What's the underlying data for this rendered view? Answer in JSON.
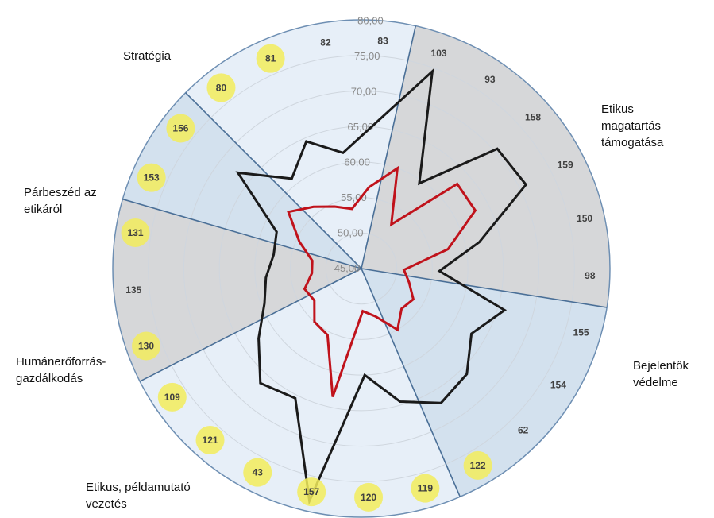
{
  "chart_data": {
    "type": "radar",
    "rlim": [
      45,
      80
    ],
    "ring_values": [
      45,
      50,
      55,
      60,
      65,
      70,
      75,
      80
    ],
    "ring_labels": [
      "45,00",
      "50,00",
      "55,00",
      "60,00",
      "65,00",
      "70,00",
      "75,00",
      "80,00"
    ],
    "spokes": [
      "83",
      "103",
      "93",
      "158",
      "159",
      "150",
      "98",
      "155",
      "154",
      "62",
      "122",
      "119",
      "120",
      "157",
      "43",
      "121",
      "109",
      "130",
      "135",
      "131",
      "153",
      "156",
      "80",
      "81",
      "82"
    ],
    "highlighted_spokes": [
      "122",
      "119",
      "120",
      "157",
      "43",
      "121",
      "109",
      "130",
      "131",
      "153",
      "156",
      "80",
      "81"
    ],
    "sectors": [
      {
        "label": "Etikus\nmagatartás\ntámogatása",
        "start_spoke": 1,
        "end_spoke": 6,
        "shade": "gray"
      },
      {
        "label": "Bejelentők\nvédelme",
        "start_spoke": 7,
        "end_spoke": 10,
        "shade": "blue"
      },
      {
        "label": "Etikus, példamutató\nvezetés",
        "start_spoke": 11,
        "end_spoke": 16,
        "shade": "light"
      },
      {
        "label": "Humánerőforrás-\ngazdálkodás",
        "start_spoke": 17,
        "end_spoke": 19,
        "shade": "gray"
      },
      {
        "label": "Párbeszéd az\netikáról",
        "start_spoke": 20,
        "end_spoke": 21,
        "shade": "blue"
      },
      {
        "label": "Stratégia",
        "start_spoke": 22,
        "end_spoke": 24,
        "shade": "light"
      }
    ],
    "series": [
      {
        "color": "#1a1a1a",
        "values": [
          65.5,
          74.5,
          59.5,
          70.5,
          71,
          62,
          56,
          66,
          63,
          66,
          67,
          64.5,
          60,
          78.5,
          65.5,
          66.5,
          62.5,
          59.5,
          58.5,
          57.5,
          58,
          67,
          61,
          64.5,
          61.5
        ]
      },
      {
        "color": "#c0121b",
        "values": [
          56.5,
          60,
          52.5,
          63,
          63,
          57.5,
          51,
          52,
          53.5,
          53,
          55,
          52,
          51,
          63.5,
          55.5,
          55,
          53,
          53.5,
          52,
          52,
          54.5,
          58,
          56,
          54.5,
          53.5
        ]
      }
    ],
    "colors": {
      "gray_sector": "#d6d7d9",
      "blue_sector": "#d3e1ee",
      "light_sector": "#e7eff8",
      "divider": "#4a6f97",
      "outer_ring": "#6e8fb3",
      "grid": "#cfd6de",
      "highlight": "#f2ec5c"
    }
  }
}
